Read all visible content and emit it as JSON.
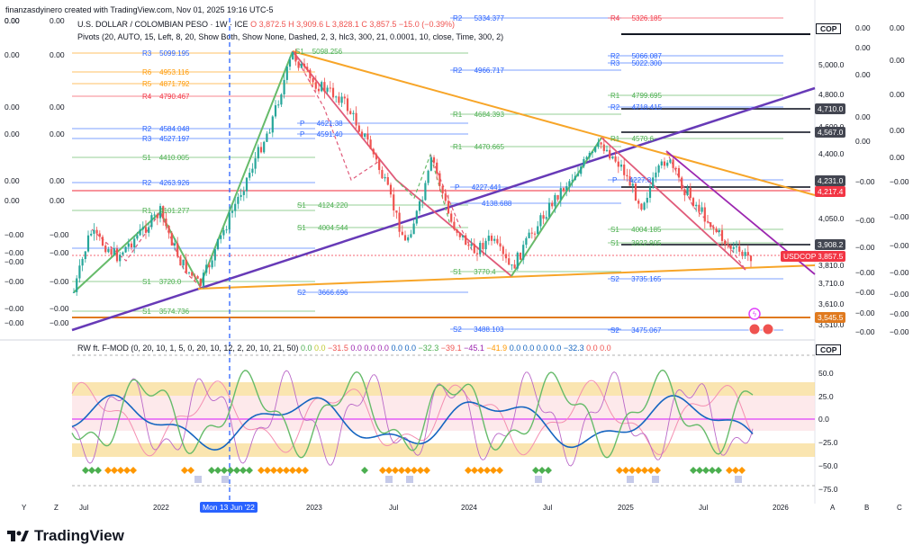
{
  "watermark": "finanzasdyinero created with TradingView.com, Nov 01, 2025 19:16 UTC-5",
  "symbol": {
    "title": "U.S. DOLLAR / COLOMBIAN PESO · 1W · ICE",
    "open": "O 3,872.5",
    "high": "H 3,909.6",
    "low": "L 3,828.1",
    "close": "C 3,857.5",
    "change": "−15.0 (−0.39%)"
  },
  "pivots_legend": "Pivots (20, AUTO, 15, Left, 8, 20, Show Both, Show None, Dashed, 2, 3, hlc3, 300, 21, 0.0001, 10, close, Time, 300, 2)",
  "indicator_legend": {
    "name": "RW ft. F-MOD (0, 20, 10, 1, 5, 0, 20, 10, 12, 2, 20, 10, 21, 50)",
    "vals": [
      "0.0",
      "0.0",
      "−31.5",
      "0.0",
      "0.0",
      "0.0",
      "0.0",
      "0.0",
      "−32.3",
      "−39.1",
      "−45.1",
      "−41.9",
      "0.0",
      "0.0",
      "0.0",
      "0.0",
      "−32.3",
      "0.0",
      "0.0"
    ]
  },
  "left_scale_values": [
    "0.00",
    "0.00",
    "0.00",
    "0.00",
    "0.00",
    "0.00",
    "−0.00",
    "−0.00",
    "−0.00",
    "−0.00",
    "−0.00",
    "−0.00",
    "−0.00"
  ],
  "left_scale_values2": [
    "0.00",
    "0.00",
    "0.00",
    "0.00",
    "0.00",
    "0.00",
    "0.00",
    "−0.00",
    "−0.00",
    "−0.00",
    "−0.00",
    "−0.00",
    "−0.00"
  ],
  "price_axis": {
    "currency": "COP",
    "ticks": [
      "5,000.0",
      "4,800.0",
      "4,600.0",
      "4,400.0",
      "4,050.0",
      "3,810.0",
      "3,710.0",
      "3,610.0",
      "3,510.0"
    ],
    "tags": [
      {
        "label": "4,710.0",
        "color": "#434651"
      },
      {
        "label": "4,567.0",
        "color": "#434651"
      },
      {
        "label": "4,231.0",
        "color": "#434651"
      },
      {
        "label": "4,217.4",
        "color": "#f23645"
      },
      {
        "label": "3,908.2",
        "color": "#434651"
      },
      {
        "label": "3,857.5",
        "color": "#f23645"
      },
      {
        "label": "3,545.5",
        "color": "#e07a1f"
      }
    ],
    "usdcop_tag": "USDCOP"
  },
  "right_col1": [
    "0.00",
    "0.00",
    "0.00",
    "0.00",
    "0.00",
    "−0.00",
    "−0.00",
    "−0.00",
    "−0.00",
    "−0.00",
    "−0.00",
    "−0.00"
  ],
  "right_col2": [
    "0.00",
    "0.00",
    "0.00",
    "0.00",
    "0.00",
    "−0.00",
    "−0.00",
    "−0.00",
    "−0.00",
    "−0.00",
    "−0.00",
    "−0.00"
  ],
  "pivot_labels": [
    {
      "name": "R3",
      "value": "5099.195",
      "color": "#2962ff"
    },
    {
      "name": "R6",
      "value": "4953.116",
      "color": "#ff9800"
    },
    {
      "name": "R5",
      "value": "4871.792",
      "color": "#ff9800"
    },
    {
      "name": "R4",
      "value": "4790.467",
      "color": "#f23645"
    },
    {
      "name": "R2",
      "value": "4584.048",
      "color": "#2962ff"
    },
    {
      "name": "R3",
      "value": "4527.197",
      "color": "#2962ff"
    },
    {
      "name": "S1",
      "value": "4410.005",
      "color": "#4caf50"
    },
    {
      "name": "R2",
      "value": "4263.926",
      "color": "#2962ff"
    },
    {
      "name": "R1",
      "value": "4101.277",
      "color": "#4caf50"
    },
    {
      "name": "S1",
      "value": "3720.0",
      "color": "#4caf50"
    },
    {
      "name": "S1",
      "value": "3574.736",
      "color": "#4caf50"
    }
  ],
  "pivot_labels_mid": [
    {
      "name": "S1",
      "value": "5098.256",
      "color": "#4caf50"
    },
    {
      "name": "P",
      "value": "4621.38",
      "color": "#2962ff"
    },
    {
      "name": "P",
      "value": "4591.40",
      "color": "#2962ff"
    },
    {
      "name": "S1",
      "value": "4124.220",
      "color": "#4caf50"
    },
    {
      "name": "S1",
      "value": "4004.544",
      "color": "#4caf50"
    },
    {
      "name": "S2",
      "value": "3666.696",
      "color": "#2962ff"
    }
  ],
  "pivot_labels_right": [
    {
      "name": "R2",
      "value": "5334.377",
      "color": "#2962ff"
    },
    {
      "name": "R2",
      "value": "4966.717",
      "color": "#2962ff"
    },
    {
      "name": "R1",
      "value": "4684.393",
      "color": "#4caf50"
    },
    {
      "name": "R1",
      "value": "4470.665",
      "color": "#4caf50"
    },
    {
      "name": "P",
      "value": "4227.441",
      "color": "#2962ff"
    },
    {
      "name": "",
      "value": "4138.688",
      "color": "#2962ff"
    },
    {
      "name": "S1",
      "value": "3770.4",
      "color": "#4caf50"
    },
    {
      "name": "S2",
      "value": "3488.103",
      "color": "#2962ff"
    }
  ],
  "pivot_labels_far": [
    {
      "name": "R4",
      "value": "5326.185",
      "color": "#f23645"
    },
    {
      "name": "R2",
      "value": "5066.087",
      "color": "#2962ff"
    },
    {
      "name": "R3",
      "value": "5022.300",
      "color": "#2962ff"
    },
    {
      "name": "R1",
      "value": "4799.695",
      "color": "#4caf50"
    },
    {
      "name": "R2",
      "value": "4718.415",
      "color": "#2962ff"
    },
    {
      "name": "R1",
      "value": "4570.6",
      "color": "#4caf50"
    },
    {
      "name": "P",
      "value": "4227.8",
      "color": "#2962ff"
    },
    {
      "name": "S1",
      "value": "4004.185",
      "color": "#4caf50"
    },
    {
      "name": "S1",
      "value": "3922.905",
      "color": "#4caf50"
    },
    {
      "name": "S2",
      "value": "3735.165",
      "color": "#2962ff"
    },
    {
      "name": "S2",
      "value": "3475.067",
      "color": "#2962ff"
    }
  ],
  "osc_axis": {
    "currency": "COP",
    "ticks": [
      "50.0",
      "25.0",
      "0.0",
      "−25.0",
      "−50.0",
      "−75.0"
    ]
  },
  "time_axis": [
    "Jul",
    "2022",
    "2023",
    "Jul",
    "2024",
    "Jul",
    "2025",
    "Jul",
    "2026"
  ],
  "crosshair_date": "Mon 13 Jun '22",
  "bottom_letters": [
    "Y",
    "Z",
    "A",
    "B",
    "C"
  ],
  "brand": "TradingView",
  "colors": {
    "up": "#26a69a",
    "down": "#ef5350",
    "purple": "#673ab7",
    "orange": "#f7a528",
    "green": "#66bb6a",
    "pink": "#e05b7a",
    "blue": "#1565c0"
  }
}
